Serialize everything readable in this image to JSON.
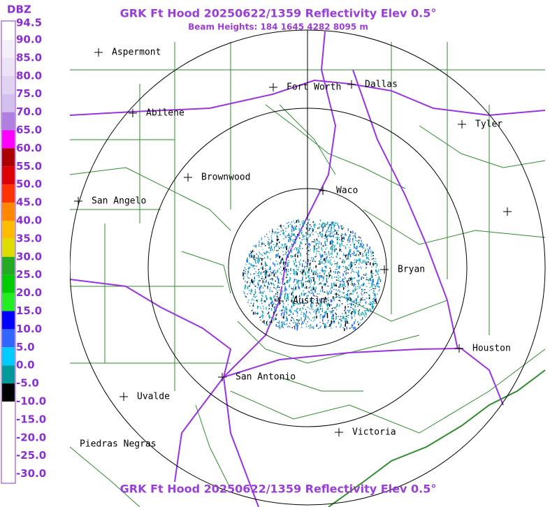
{
  "header": {
    "title": "GRK Ft Hood 20250622/1359 Reflectivity Elev 0.5°",
    "subtitle": "Beam Heights: 184 1645 4282 8095 m",
    "footer": "GRK Ft Hood 20250622/1359 Reflectivity Elev 0.5°"
  },
  "legend": {
    "unit": "DBZ",
    "labels": [
      "94.5",
      "90.0",
      "85.0",
      "80.0",
      "75.0",
      "70.0",
      "65.0",
      "60.0",
      "55.0",
      "50.0",
      "45.0",
      "40.0",
      "35.0",
      "30.0",
      "25.0",
      "20.0",
      "15.0",
      "10.0",
      "5.0",
      "0.0",
      "-5.0",
      "-10.0",
      "-15.0",
      "-20.0",
      "-25.0",
      "-30.0"
    ]
  },
  "cities": [
    "Aspermont",
    "Fort Worth",
    "Dallas",
    "Abilene",
    "Tyler",
    "Brownwood",
    "Waco",
    "San Angelo",
    "Bryan",
    "Austin",
    "Houston",
    "San Antonio",
    "Uvalde",
    "Victoria",
    "Piedras Negras"
  ]
}
